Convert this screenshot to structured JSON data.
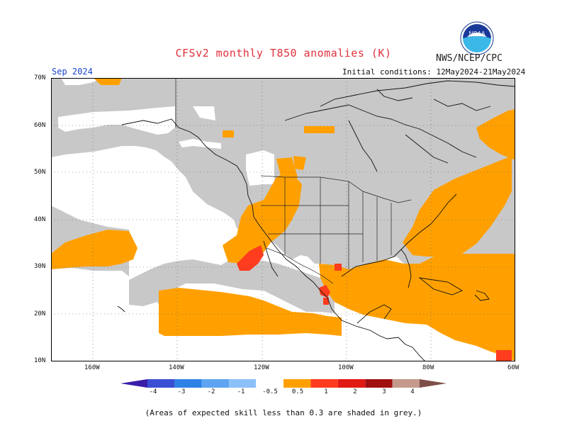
{
  "header": {
    "title": "CFSv2 monthly T850 anomalies (K)",
    "agency": "NWS/NCEP/CPC",
    "logo_text": "NOAA",
    "month": "Sep 2024",
    "initial_conditions": "Initial conditions: 12May2024-21May2024"
  },
  "map": {
    "lat_labels": [
      "70N",
      "60N",
      "50N",
      "40N",
      "30N",
      "20N",
      "10N"
    ],
    "lon_labels": [
      "160W",
      "140W",
      "120W",
      "100W",
      "80W",
      "60W"
    ],
    "colors": {
      "grey": "#c8c8c8",
      "orange": "#ffa000",
      "red_orange": "#ff3c1e",
      "red": "#e11a14",
      "coast": "#111111",
      "grid": "#555555"
    }
  },
  "colorbar": {
    "labels": [
      "-4",
      "-3",
      "-2",
      "-1",
      "-0.5",
      "0.5",
      "1",
      "2",
      "3",
      "4"
    ],
    "colors": [
      "#3a1ea8",
      "#3a4fd4",
      "#2e82e6",
      "#5ea4f0",
      "#8cc0f8",
      "#ffffff",
      "#ffa000",
      "#ff3c1e",
      "#e11a14",
      "#a01010",
      "#c49a8c",
      "#7e4e48"
    ]
  },
  "footer": {
    "note": "(Areas of expected skill less than 0.3 are shaded in grey.)"
  }
}
